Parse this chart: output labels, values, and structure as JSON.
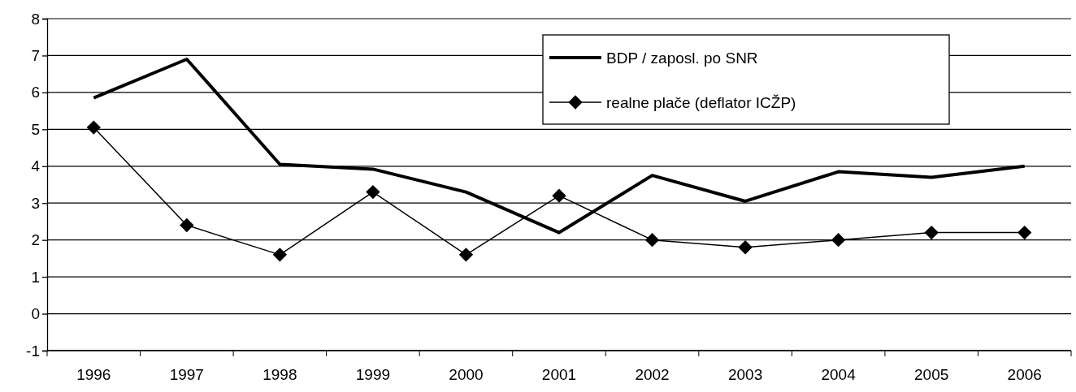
{
  "chart_data": {
    "type": "line",
    "categories": [
      "1996",
      "1997",
      "1998",
      "1999",
      "2000",
      "2001",
      "2002",
      "2003",
      "2004",
      "2005",
      "2006"
    ],
    "ylim": [
      -1,
      8
    ],
    "yticks": [
      -1,
      0,
      1,
      2,
      3,
      4,
      5,
      6,
      7,
      8
    ],
    "grid": "y",
    "legend": "top right",
    "series": [
      {
        "name": "BDP / zaposl. po SNR",
        "color": "#000000",
        "marker": "none",
        "values": [
          5.85,
          6.9,
          4.05,
          3.92,
          3.3,
          2.2,
          3.75,
          3.05,
          3.85,
          3.7,
          4.0
        ]
      },
      {
        "name": "realne plače (deflator ICŽP)",
        "color": "#000000",
        "marker": "diamond",
        "values": [
          5.05,
          2.4,
          1.6,
          3.3,
          1.6,
          3.2,
          2.0,
          1.8,
          2.0,
          2.2,
          2.2
        ]
      }
    ]
  }
}
